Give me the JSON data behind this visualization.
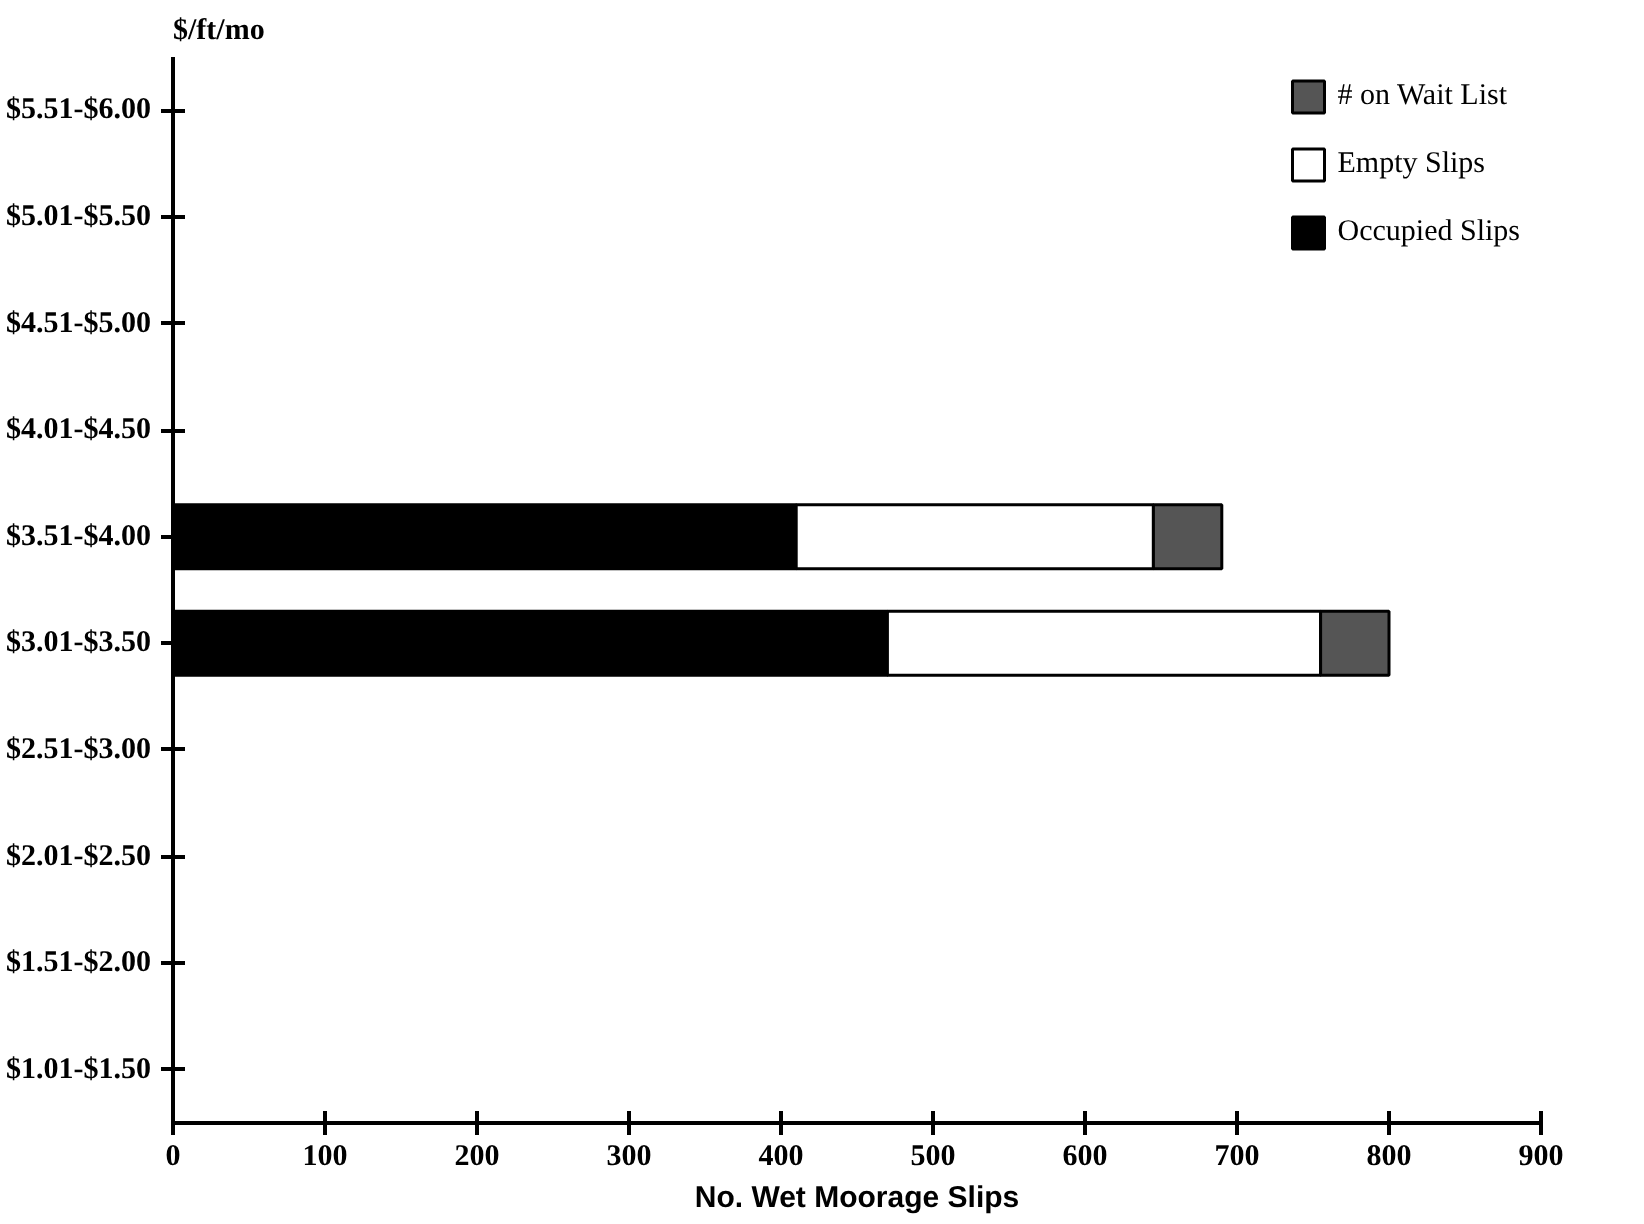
{
  "chart_data": {
    "type": "bar",
    "orientation": "horizontal",
    "stacked": true,
    "ylabel": "$/ft/mo",
    "xlabel": "No. Wet Moorage Slips",
    "categories": [
      "$5.51-$6.00",
      "$5.01-$5.50",
      "$4.51-$5.00",
      "$4.01-$4.50",
      "$3.51-$4.00",
      "$3.01-$3.50",
      "$2.51-$3.00",
      "$2.01-$2.50",
      "$1.51-$2.00",
      "$1.01-$1.50"
    ],
    "series": [
      {
        "name": "Occupied Slips",
        "color": "#000000",
        "values": [
          null,
          null,
          null,
          null,
          410,
          470,
          null,
          null,
          null,
          null
        ]
      },
      {
        "name": "Empty Slips",
        "color": "#ffffff",
        "values": [
          null,
          null,
          null,
          null,
          235,
          285,
          null,
          null,
          null,
          null
        ]
      },
      {
        "name": "# on Wait List",
        "color": "#555555",
        "values": [
          null,
          null,
          null,
          null,
          45,
          45,
          null,
          null,
          null,
          null
        ]
      }
    ],
    "xlim": [
      0,
      900
    ],
    "xticks": [
      0,
      100,
      200,
      300,
      400,
      500,
      600,
      700,
      800,
      900
    ],
    "legend": "top right",
    "grid": false
  }
}
